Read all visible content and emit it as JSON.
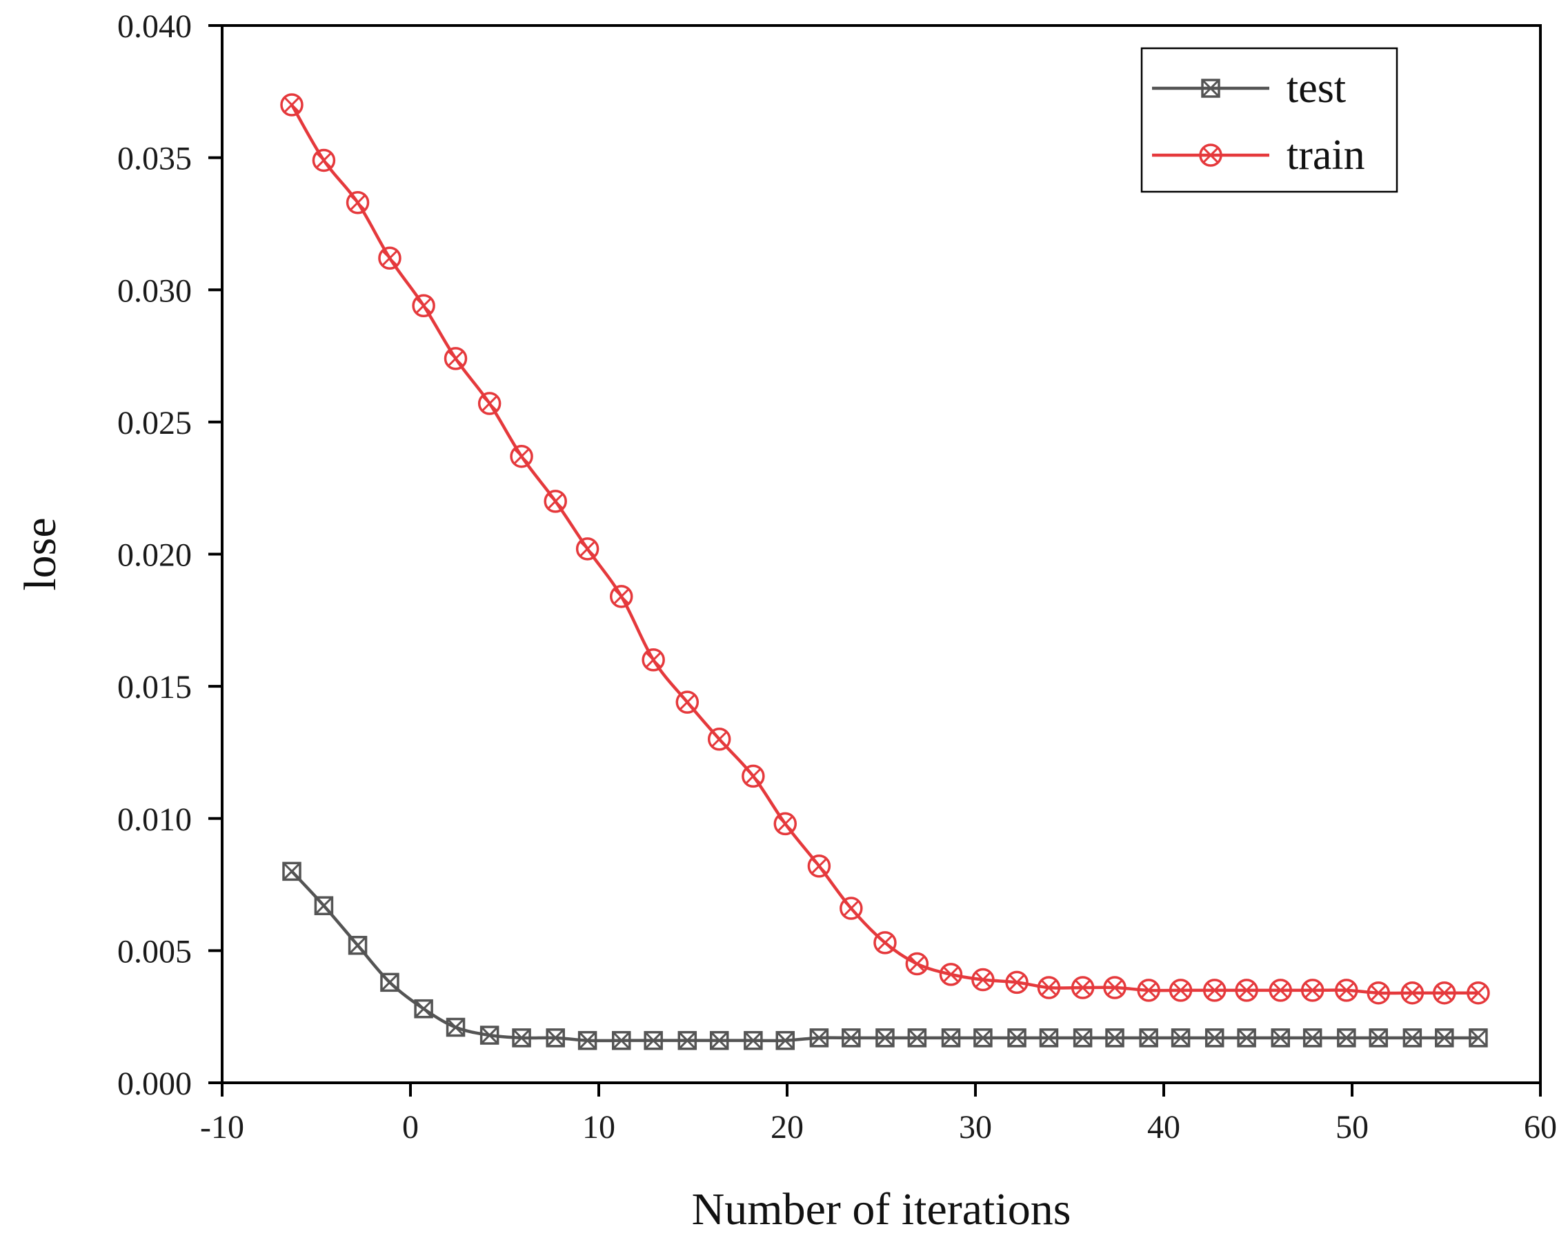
{
  "chart_data": {
    "type": "line",
    "title": "",
    "xlabel": "Number of iterations",
    "ylabel": "lose",
    "xlim": [
      -10,
      60
    ],
    "ylim": [
      0,
      0.04
    ],
    "xticks": [
      "-10",
      "0",
      "10",
      "20",
      "30",
      "40",
      "50",
      "60"
    ],
    "xtick_values": [
      -10,
      0,
      10,
      20,
      30,
      40,
      50,
      60
    ],
    "yticks": [
      "0.000",
      "0.005",
      "0.010",
      "0.015",
      "0.020",
      "0.025",
      "0.030",
      "0.035",
      "0.040"
    ],
    "ytick_values": [
      0,
      0.005,
      0.01,
      0.015,
      0.02,
      0.025,
      0.03,
      0.035,
      0.04
    ],
    "grid": false,
    "legend_position": "top-right",
    "x": [
      -6.3,
      -4.6,
      -2.8,
      -1.1,
      0.7,
      2.4,
      4.2,
      5.9,
      7.7,
      9.4,
      11.2,
      12.9,
      14.7,
      16.4,
      18.2,
      19.9,
      21.7,
      23.4,
      25.2,
      26.9,
      28.7,
      30.4,
      32.2,
      33.9,
      35.7,
      37.4,
      39.2,
      40.9,
      42.7,
      44.4,
      46.2,
      47.9,
      49.7,
      51.4,
      53.2,
      54.9,
      56.7
    ],
    "series": [
      {
        "name": "test",
        "color": "#545454",
        "marker": "square-x",
        "values": [
          0.008,
          0.0067,
          0.0052,
          0.0038,
          0.0028,
          0.0021,
          0.0018,
          0.0017,
          0.0017,
          0.0016,
          0.0016,
          0.0016,
          0.0016,
          0.0016,
          0.0016,
          0.0016,
          0.0017,
          0.0017,
          0.0017,
          0.0017,
          0.0017,
          0.0017,
          0.0017,
          0.0017,
          0.0017,
          0.0017,
          0.0017,
          0.0017,
          0.0017,
          0.0017,
          0.0017,
          0.0017,
          0.0017,
          0.0017,
          0.0017,
          0.0017,
          0.0017
        ]
      },
      {
        "name": "train",
        "color": "#e5393c",
        "marker": "circle-x",
        "values": [
          0.037,
          0.0349,
          0.0333,
          0.0312,
          0.0294,
          0.0274,
          0.0257,
          0.0237,
          0.022,
          0.0202,
          0.0184,
          0.016,
          0.0144,
          0.013,
          0.0116,
          0.0098,
          0.0082,
          0.0066,
          0.0053,
          0.0045,
          0.0041,
          0.0039,
          0.0038,
          0.0036,
          0.0036,
          0.0036,
          0.0035,
          0.0035,
          0.0035,
          0.0035,
          0.0035,
          0.0035,
          0.0035,
          0.0034,
          0.0034,
          0.0034,
          0.0034
        ]
      }
    ]
  }
}
